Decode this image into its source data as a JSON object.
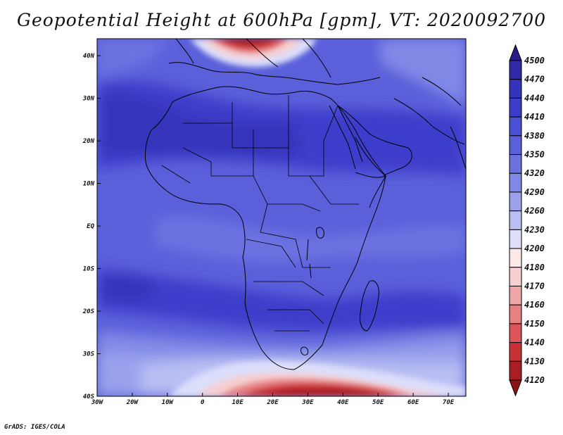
{
  "title": "Geopotential Height at 600hPa [gpm], VT: 2020092700",
  "footer": "GrADS: IGES/COLA",
  "map": {
    "lon_labels": [
      "30W",
      "20W",
      "10W",
      "0",
      "10E",
      "20E",
      "30E",
      "40E",
      "50E",
      "60E",
      "70E"
    ],
    "lat_labels": [
      "40N",
      "30N",
      "20N",
      "10N",
      "EQ",
      "10S",
      "20S",
      "30S",
      "40S"
    ],
    "lon_range": [
      -30,
      75
    ],
    "lat_range": [
      -40,
      44
    ]
  },
  "colorbar": {
    "levels": [
      "4500",
      "4470",
      "4440",
      "4410",
      "4380",
      "4350",
      "4320",
      "4290",
      "4260",
      "4230",
      "4200",
      "4180",
      "4170",
      "4160",
      "4150",
      "4140",
      "4130",
      "4120"
    ],
    "colors": [
      "#2a1a8a",
      "#2f2aa8",
      "#3434bb",
      "#3c3ecb",
      "#4a4fd4",
      "#5a60da",
      "#6b72e0",
      "#8089e6",
      "#9aa2ec",
      "#b9bef3",
      "#dcdefa",
      "#fbe9ea",
      "#f6cfd0",
      "#eea6a8",
      "#e68083",
      "#dd5558",
      "#c83236",
      "#a81e22",
      "#8a1418"
    ]
  },
  "colors": {
    "background_field": "#5a60da",
    "coastline": "#000000"
  }
}
